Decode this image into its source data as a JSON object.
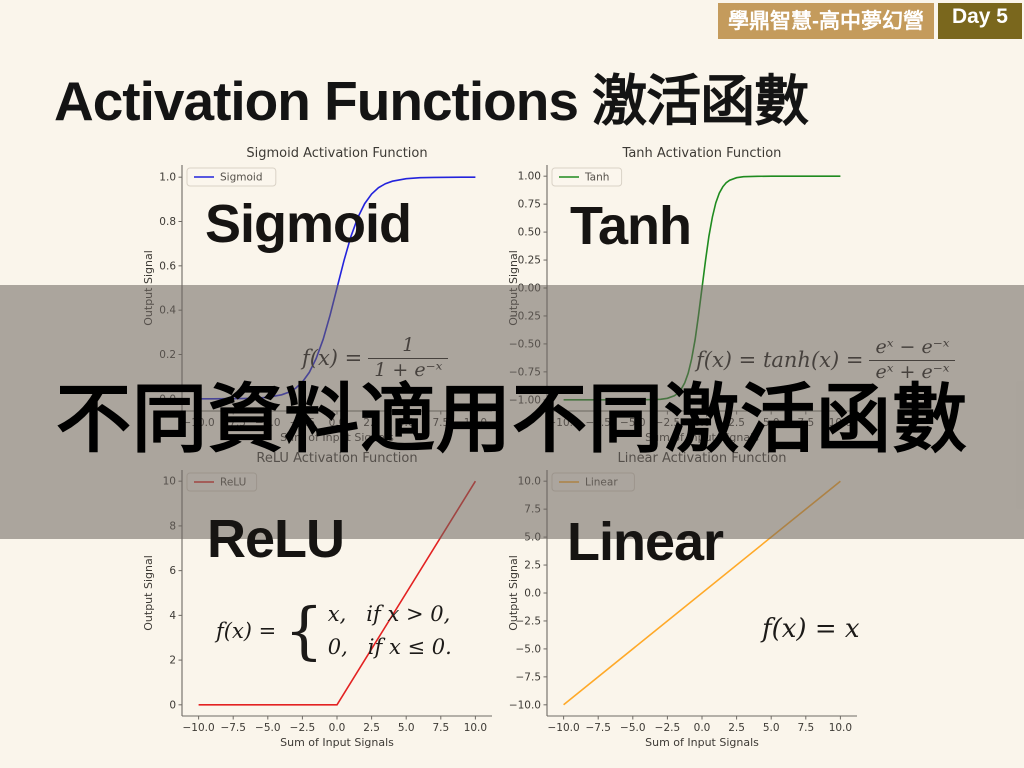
{
  "slide": {
    "background": "#FAF5EB",
    "badge": {
      "left_text": "學鼎智慧-高中夢幻營",
      "right_text": "Day 5",
      "left_bg": "#C49B5C",
      "right_bg": "#7A671D",
      "text_color": "#FFFFFF"
    },
    "title": "Activation Functions 激活函數",
    "overlay": {
      "text": "不同資料適用不同激活函數",
      "band_color": "rgba(105,98,92,0.55)"
    }
  },
  "chart_data": [
    {
      "key": "sigmoid",
      "type": "line",
      "title": "Sigmoid Activation Function",
      "big_label": "Sigmoid",
      "legend": "Sigmoid",
      "color": "#2323DC",
      "xlabel": "Sum of Input Signals",
      "ylabel": "Output Signal",
      "xlim": [
        -11.2,
        11.2
      ],
      "ylim": [
        -0.055,
        1.055
      ],
      "grid": false,
      "legend_position": "upper left",
      "xticks": [
        {
          "v": -10,
          "t": "−10.0"
        },
        {
          "v": -7.5,
          "t": "−7.5"
        },
        {
          "v": -5,
          "t": "−5.0"
        },
        {
          "v": -2.5,
          "t": "−2.5"
        },
        {
          "v": 0,
          "t": "0.0"
        },
        {
          "v": 2.5,
          "t": "2.5"
        },
        {
          "v": 5,
          "t": "5.0"
        },
        {
          "v": 7.5,
          "t": "7.5"
        },
        {
          "v": 10,
          "t": "10.0"
        }
      ],
      "yticks": [
        {
          "v": 0,
          "t": "0.0"
        },
        {
          "v": 0.2,
          "t": "0.2"
        },
        {
          "v": 0.4,
          "t": "0.4"
        },
        {
          "v": 0.6,
          "t": "0.6"
        },
        {
          "v": 0.8,
          "t": "0.8"
        },
        {
          "v": 1,
          "t": "1.0"
        }
      ],
      "points": [
        [
          -10,
          0.0
        ],
        [
          -9,
          0.0001
        ],
        [
          -8,
          0.0003
        ],
        [
          -7,
          0.0009
        ],
        [
          -6,
          0.0025
        ],
        [
          -5,
          0.0067
        ],
        [
          -4,
          0.018
        ],
        [
          -3.5,
          0.0293
        ],
        [
          -3,
          0.0474
        ],
        [
          -2.5,
          0.0759
        ],
        [
          -2,
          0.1192
        ],
        [
          -1.5,
          0.1824
        ],
        [
          -1,
          0.2689
        ],
        [
          -0.5,
          0.3775
        ],
        [
          0,
          0.5
        ],
        [
          0.5,
          0.6225
        ],
        [
          1,
          0.7311
        ],
        [
          1.5,
          0.8176
        ],
        [
          2,
          0.8808
        ],
        [
          2.5,
          0.9241
        ],
        [
          3,
          0.9526
        ],
        [
          3.5,
          0.9707
        ],
        [
          4,
          0.982
        ],
        [
          5,
          0.9933
        ],
        [
          6,
          0.9975
        ],
        [
          7,
          0.9991
        ],
        [
          8,
          0.9997
        ],
        [
          9,
          0.9999
        ],
        [
          10,
          1.0
        ]
      ],
      "formula": {
        "lhs": "f(x) = ",
        "num": "1",
        "den": "1 + e⁻ˣ"
      }
    },
    {
      "key": "tanh",
      "type": "line",
      "title": "Tanh Activation Function",
      "big_label": "Tanh",
      "legend": "Tanh",
      "color": "#1F8B1F",
      "xlabel": "Sum of Input Signals",
      "ylabel": "Output Signal",
      "xlim": [
        -11.2,
        11.2
      ],
      "ylim": [
        -1.1,
        1.1
      ],
      "grid": false,
      "legend_position": "upper left",
      "xticks": [
        {
          "v": -10,
          "t": "−10.0"
        },
        {
          "v": -7.5,
          "t": "−7.5"
        },
        {
          "v": -5,
          "t": "−5.0"
        },
        {
          "v": -2.5,
          "t": "−2.5"
        },
        {
          "v": 0,
          "t": "0.0"
        },
        {
          "v": 2.5,
          "t": "2.5"
        },
        {
          "v": 5,
          "t": "5.0"
        },
        {
          "v": 7.5,
          "t": "7.5"
        },
        {
          "v": 10,
          "t": "10.0"
        }
      ],
      "yticks": [
        {
          "v": -1,
          "t": "−1.00"
        },
        {
          "v": -0.75,
          "t": "−0.75"
        },
        {
          "v": -0.5,
          "t": "−0.50"
        },
        {
          "v": -0.25,
          "t": "−0.25"
        },
        {
          "v": 0,
          "t": "0.00"
        },
        {
          "v": 0.25,
          "t": "0.25"
        },
        {
          "v": 0.5,
          "t": "0.50"
        },
        {
          "v": 0.75,
          "t": "0.75"
        },
        {
          "v": 1,
          "t": "1.00"
        }
      ],
      "points": [
        [
          -10,
          -1
        ],
        [
          -5,
          -0.9999
        ],
        [
          -4,
          -0.9993
        ],
        [
          -3,
          -0.9951
        ],
        [
          -2.5,
          -0.9866
        ],
        [
          -2,
          -0.964
        ],
        [
          -1.75,
          -0.9414
        ],
        [
          -1.5,
          -0.9051
        ],
        [
          -1.25,
          -0.8483
        ],
        [
          -1,
          -0.7616
        ],
        [
          -0.75,
          -0.6351
        ],
        [
          -0.5,
          -0.4621
        ],
        [
          -0.25,
          -0.2449
        ],
        [
          0,
          0
        ],
        [
          0.25,
          0.2449
        ],
        [
          0.5,
          0.4621
        ],
        [
          0.75,
          0.6351
        ],
        [
          1,
          0.7616
        ],
        [
          1.25,
          0.8483
        ],
        [
          1.5,
          0.9051
        ],
        [
          1.75,
          0.9414
        ],
        [
          2,
          0.964
        ],
        [
          2.5,
          0.9866
        ],
        [
          3,
          0.9951
        ],
        [
          4,
          0.9993
        ],
        [
          5,
          0.9999
        ],
        [
          10,
          1
        ]
      ],
      "formula": {
        "lhs": "f(x) = tanh(x) = ",
        "num": "eˣ − e⁻ˣ",
        "den": "eˣ + e⁻ˣ"
      }
    },
    {
      "key": "relu",
      "type": "line",
      "title": "ReLU Activation Function",
      "big_label": "ReLU",
      "legend": "ReLU",
      "color": "#E32222",
      "xlabel": "Sum of Input Signals",
      "ylabel": "Output Signal",
      "xlim": [
        -11.2,
        11.2
      ],
      "ylim": [
        -0.5,
        10.5
      ],
      "grid": false,
      "legend_position": "upper left",
      "xticks": [
        {
          "v": -10,
          "t": "−10.0"
        },
        {
          "v": -7.5,
          "t": "−7.5"
        },
        {
          "v": -5,
          "t": "−5.0"
        },
        {
          "v": -2.5,
          "t": "−2.5"
        },
        {
          "v": 0,
          "t": "0.0"
        },
        {
          "v": 2.5,
          "t": "2.5"
        },
        {
          "v": 5,
          "t": "5.0"
        },
        {
          "v": 7.5,
          "t": "7.5"
        },
        {
          "v": 10,
          "t": "10.0"
        }
      ],
      "yticks": [
        {
          "v": 0,
          "t": "0"
        },
        {
          "v": 2,
          "t": "2"
        },
        {
          "v": 4,
          "t": "4"
        },
        {
          "v": 6,
          "t": "6"
        },
        {
          "v": 8,
          "t": "8"
        },
        {
          "v": 10,
          "t": "10"
        }
      ],
      "points": [
        [
          -10,
          0
        ],
        [
          0,
          0
        ],
        [
          10,
          10
        ]
      ],
      "formula": {
        "lhs": "f(x) = ",
        "brace": "{",
        "line1": "x,   if x > 0,",
        "line2": "0,   if x ≤ 0."
      }
    },
    {
      "key": "linear",
      "type": "line",
      "title": "Linear Activation Function",
      "big_label": "Linear",
      "legend": "Linear",
      "color": "#FFA928",
      "xlabel": "Sum of Input Signals",
      "ylabel": "Output Signal",
      "xlim": [
        -11.2,
        11.2
      ],
      "ylim": [
        -11,
        11
      ],
      "grid": false,
      "legend_position": "upper left",
      "xticks": [
        {
          "v": -10,
          "t": "−10.0"
        },
        {
          "v": -7.5,
          "t": "−7.5"
        },
        {
          "v": -5,
          "t": "−5.0"
        },
        {
          "v": -2.5,
          "t": "−2.5"
        },
        {
          "v": 0,
          "t": "0.0"
        },
        {
          "v": 2.5,
          "t": "2.5"
        },
        {
          "v": 5,
          "t": "5.0"
        },
        {
          "v": 7.5,
          "t": "7.5"
        },
        {
          "v": 10,
          "t": "10.0"
        }
      ],
      "yticks": [
        {
          "v": -10,
          "t": "−10.0"
        },
        {
          "v": -7.5,
          "t": "−7.5"
        },
        {
          "v": -5,
          "t": "−5.0"
        },
        {
          "v": -2.5,
          "t": "−2.5"
        },
        {
          "v": 0,
          "t": "0.0"
        },
        {
          "v": 2.5,
          "t": "2.5"
        },
        {
          "v": 5,
          "t": "5.0"
        },
        {
          "v": 7.5,
          "t": "7.5"
        },
        {
          "v": 10,
          "t": "10.0"
        }
      ],
      "points": [
        [
          -10,
          -10
        ],
        [
          10,
          10
        ]
      ],
      "formula": {
        "text": "f(x) = x"
      }
    }
  ]
}
